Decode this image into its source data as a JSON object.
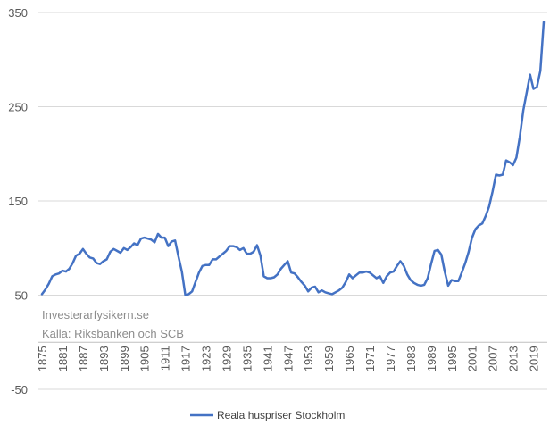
{
  "chart_data": {
    "type": "line",
    "title": "",
    "xlabel": "",
    "ylabel": "",
    "ylim": [
      -50,
      350
    ],
    "y_ticks": [
      350,
      250,
      150,
      50,
      -50
    ],
    "x_tick_labels": [
      "1875",
      "1881",
      "1887",
      "1893",
      "1899",
      "1905",
      "1911",
      "1917",
      "1923",
      "1929",
      "1935",
      "1941",
      "1947",
      "1953",
      "1959",
      "1965",
      "1971",
      "1977",
      "1983",
      "1989",
      "1995",
      "2001",
      "2007",
      "2013",
      "2019"
    ],
    "x_range": [
      1875,
      2022
    ],
    "grid": "horizontal",
    "legend": "bottom",
    "annotations": [
      "Investerarfysikern.se",
      "Källa: Riksbanken och SCB"
    ],
    "series": [
      {
        "name": "Reala huspriser Stockholm",
        "color": "#4472C4",
        "x": [
          1875,
          1876,
          1877,
          1878,
          1879,
          1880,
          1881,
          1882,
          1883,
          1884,
          1885,
          1886,
          1887,
          1888,
          1889,
          1890,
          1891,
          1892,
          1893,
          1894,
          1895,
          1896,
          1897,
          1898,
          1899,
          1900,
          1901,
          1902,
          1903,
          1904,
          1905,
          1906,
          1907,
          1908,
          1909,
          1910,
          1911,
          1912,
          1913,
          1914,
          1915,
          1916,
          1917,
          1918,
          1919,
          1920,
          1921,
          1922,
          1923,
          1924,
          1925,
          1926,
          1927,
          1928,
          1929,
          1930,
          1931,
          1932,
          1933,
          1934,
          1935,
          1936,
          1937,
          1938,
          1939,
          1940,
          1941,
          1942,
          1943,
          1944,
          1945,
          1946,
          1947,
          1948,
          1949,
          1950,
          1951,
          1952,
          1953,
          1954,
          1955,
          1956,
          1957,
          1958,
          1959,
          1960,
          1961,
          1962,
          1963,
          1964,
          1965,
          1966,
          1967,
          1968,
          1969,
          1970,
          1971,
          1972,
          1973,
          1974,
          1975,
          1976,
          1977,
          1978,
          1979,
          1980,
          1981,
          1982,
          1983,
          1984,
          1985,
          1986,
          1987,
          1988,
          1989,
          1990,
          1991,
          1992,
          1993,
          1994,
          1995,
          1996,
          1997,
          1998,
          1999,
          2000,
          2001,
          2002,
          2003,
          2004,
          2005,
          2006,
          2007,
          2008,
          2009,
          2010,
          2011,
          2012,
          2013,
          2014,
          2015,
          2016,
          2017,
          2018,
          2019,
          2020,
          2021,
          2022
        ],
        "values": [
          51,
          56,
          62,
          70,
          72,
          73,
          76,
          75,
          78,
          84,
          92,
          94,
          99,
          94,
          90,
          89,
          84,
          83,
          86,
          88,
          96,
          99,
          97,
          95,
          100,
          98,
          101,
          105,
          103,
          110,
          111,
          110,
          109,
          106,
          115,
          111,
          111,
          102,
          107,
          108,
          91,
          75,
          50,
          51,
          54,
          64,
          74,
          81,
          82,
          82,
          88,
          88,
          91,
          94,
          97,
          102,
          102,
          101,
          98,
          100,
          94,
          94,
          96,
          103,
          92,
          70,
          68,
          68,
          69,
          72,
          78,
          82,
          86,
          74,
          73,
          69,
          64,
          60,
          54,
          58,
          59,
          53,
          55,
          53,
          52,
          51,
          53,
          55,
          58,
          64,
          72,
          68,
          71,
          74,
          74,
          75,
          74,
          71,
          68,
          70,
          63,
          70,
          74,
          75,
          81,
          86,
          81,
          72,
          66,
          63,
          61,
          60,
          61,
          68,
          83,
          97,
          98,
          93,
          75,
          60,
          66,
          65,
          65,
          74,
          84,
          96,
          111,
          120,
          124,
          126,
          134,
          144,
          160,
          178,
          177,
          178,
          193,
          191,
          188,
          196,
          218,
          246,
          265,
          284,
          269,
          271,
          288,
          340
        ]
      }
    ]
  }
}
